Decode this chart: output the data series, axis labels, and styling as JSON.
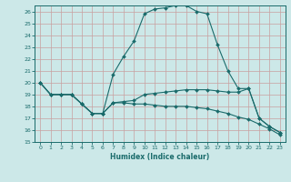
{
  "title": "",
  "xlabel": "Humidex (Indice chaleur)",
  "bg_color": "#cce8e8",
  "line_color": "#1a6b6b",
  "grid_color": "#c8a0a0",
  "xlim": [
    -0.5,
    23.5
  ],
  "ylim": [
    15,
    26.5
  ],
  "xticks": [
    0,
    1,
    2,
    3,
    4,
    5,
    6,
    7,
    8,
    9,
    10,
    11,
    12,
    13,
    14,
    15,
    16,
    17,
    18,
    19,
    20,
    21,
    22,
    23
  ],
  "yticks": [
    15,
    16,
    17,
    18,
    19,
    20,
    21,
    22,
    23,
    24,
    25,
    26
  ],
  "line1_x": [
    0,
    1,
    2,
    3,
    4,
    5,
    6,
    7,
    8,
    9,
    10,
    11,
    12,
    13,
    14,
    15,
    16,
    17,
    18,
    19,
    20,
    21,
    22,
    23
  ],
  "line1_y": [
    20,
    19,
    19,
    19,
    18.2,
    17.4,
    17.4,
    18.3,
    18.3,
    18.2,
    18.2,
    18.1,
    18.0,
    18.0,
    18.0,
    17.9,
    17.8,
    17.6,
    17.4,
    17.1,
    16.9,
    16.5,
    16.1,
    15.6
  ],
  "line2_x": [
    0,
    1,
    2,
    3,
    4,
    5,
    6,
    7,
    8,
    9,
    10,
    11,
    12,
    13,
    14,
    15,
    16,
    17,
    18,
    19,
    20,
    21,
    22,
    23
  ],
  "line2_y": [
    20,
    19,
    19,
    19,
    18.2,
    17.4,
    17.4,
    20.7,
    22.2,
    23.5,
    25.8,
    26.2,
    26.3,
    26.5,
    26.5,
    26.0,
    25.8,
    23.2,
    21.0,
    19.5,
    19.5,
    17.0,
    16.3,
    15.8
  ],
  "line3_x": [
    0,
    1,
    2,
    3,
    4,
    5,
    6,
    7,
    8,
    9,
    10,
    11,
    12,
    13,
    14,
    15,
    16,
    17,
    18,
    19,
    20,
    21,
    22,
    23
  ],
  "line3_y": [
    20,
    19,
    19,
    19,
    18.2,
    17.4,
    17.4,
    18.3,
    18.4,
    18.5,
    19.0,
    19.1,
    19.2,
    19.3,
    19.4,
    19.4,
    19.4,
    19.3,
    19.2,
    19.2,
    19.5,
    17.0,
    16.3,
    15.8
  ]
}
